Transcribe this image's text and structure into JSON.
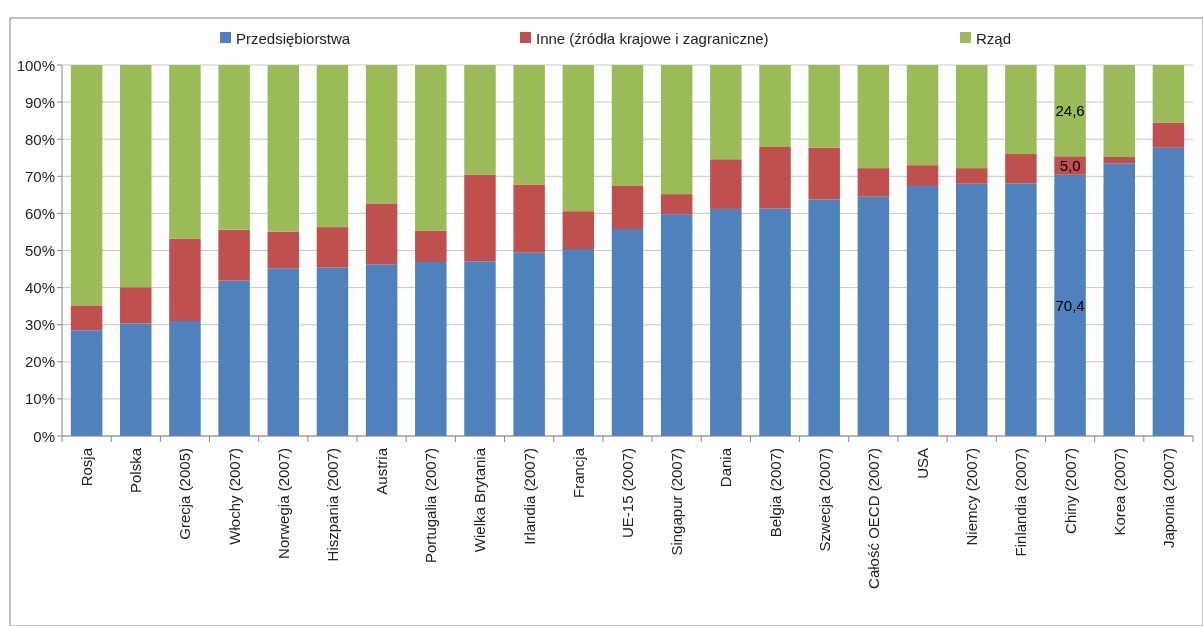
{
  "chart_data": {
    "type": "bar",
    "stacked": true,
    "categories": [
      "Rosja",
      "Polska",
      "Grecja (2005)",
      "Włochy (2007)",
      "Norwegia (2007)",
      "Hiszpania (2007)",
      "Austria",
      "Portugalia (2007)",
      "Wielka Brytania",
      "Irlandia (2007)",
      "Francja",
      "UE-15 (2007)",
      "Singapur (2007)",
      "Dania",
      "Belgia (2007)",
      "Szwecja (2007)",
      "Całość OECD (2007)",
      "USA",
      "Niemcy (2007)",
      "Finlandia (2007)",
      "Chiny (2007)",
      "Korea (2007)",
      "Japonia (2007)"
    ],
    "series": [
      {
        "name": "Przedsiębiorstwa",
        "color": "#4f81bd",
        "values": [
          28.5,
          30.3,
          31.0,
          41.9,
          45.2,
          45.4,
          46.3,
          46.9,
          47.1,
          49.4,
          50.4,
          55.8,
          59.8,
          61.2,
          61.3,
          63.8,
          64.5,
          67.4,
          68.0,
          68.1,
          70.4,
          73.5,
          77.7
        ],
        "value_labels": [
          null,
          null,
          null,
          null,
          null,
          null,
          null,
          null,
          null,
          null,
          null,
          null,
          null,
          null,
          null,
          null,
          null,
          null,
          null,
          null,
          "70,4",
          null,
          null
        ]
      },
      {
        "name": "Inne (źródła krajowe i zagraniczne)",
        "color": "#c0504d",
        "values": [
          6.7,
          9.8,
          22.2,
          13.7,
          9.9,
          10.9,
          16.4,
          8.4,
          23.3,
          18.4,
          10.2,
          11.6,
          5.4,
          13.4,
          16.6,
          13.9,
          7.7,
          5.6,
          4.2,
          7.9,
          5.0,
          1.7,
          6.7
        ],
        "value_labels": [
          null,
          null,
          null,
          null,
          null,
          null,
          null,
          null,
          null,
          null,
          null,
          null,
          null,
          null,
          null,
          null,
          null,
          null,
          null,
          null,
          "5,0",
          null,
          null
        ]
      },
      {
        "name": "Rząd",
        "color": "#9bbb59",
        "values": [
          64.8,
          59.9,
          46.8,
          44.4,
          44.9,
          43.7,
          37.3,
          44.7,
          29.6,
          32.2,
          39.4,
          32.6,
          34.8,
          25.4,
          22.1,
          22.3,
          27.8,
          27.0,
          27.8,
          24.0,
          24.6,
          24.8,
          15.6
        ],
        "value_labels": [
          null,
          null,
          null,
          null,
          null,
          null,
          null,
          null,
          null,
          null,
          null,
          null,
          null,
          null,
          null,
          null,
          null,
          null,
          null,
          null,
          "24,6",
          null,
          null
        ]
      }
    ],
    "ylim": [
      0,
      100
    ],
    "yticks": [
      {
        "value": 0,
        "label": "0%"
      },
      {
        "value": 10,
        "label": "10%"
      },
      {
        "value": 20,
        "label": "20%"
      },
      {
        "value": 30,
        "label": "30%"
      },
      {
        "value": 40,
        "label": "40%"
      },
      {
        "value": 50,
        "label": "50%"
      },
      {
        "value": 60,
        "label": "60%"
      },
      {
        "value": 70,
        "label": "70%"
      },
      {
        "value": 80,
        "label": "80%"
      },
      {
        "value": 90,
        "label": "90%"
      },
      {
        "value": 100,
        "label": "100%"
      }
    ],
    "grid": "y",
    "legend": "top"
  }
}
